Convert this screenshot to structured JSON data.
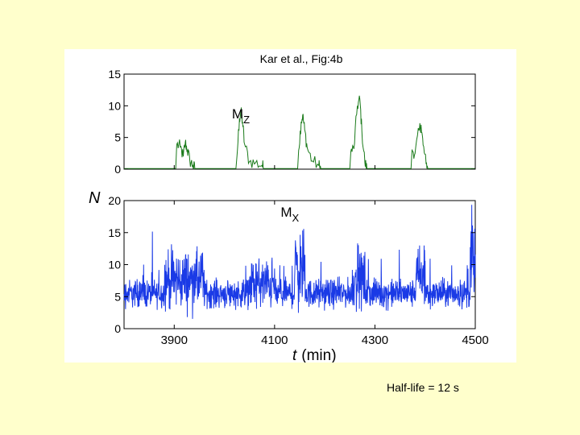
{
  "slide": {
    "background": "#ffffcc",
    "caption": "Half-life = 12 s"
  },
  "chart_data": {
    "type": "line",
    "title": "Kar et al., Fig:4b",
    "xlabel_italic": "t",
    "xlabel_unit": "(min)",
    "ylabel": "N",
    "xlim": [
      3800,
      4500
    ],
    "xticks": [
      "3900",
      "4100",
      "4300",
      "4500"
    ],
    "xtick_values": [
      3900,
      4100,
      4300,
      4500
    ],
    "panels": [
      {
        "name": "Mz",
        "label_main": "M",
        "label_sub": "Z",
        "label_at": [
          4015,
          8
        ],
        "color": "#1a7a1a",
        "ylim": [
          0,
          15
        ],
        "yticks": [
          0,
          5,
          10,
          15
        ],
        "baseline": 0.1,
        "bursts": [
          {
            "t": [
              3905,
              3912,
              3918,
              3922,
              3926,
              3931,
              3937
            ],
            "peak": [
              3.9,
              3.5,
              2.0,
              4.2,
              3.1,
              1.4,
              0.6
            ]
          },
          {
            "t": [
              4025,
              4030,
              4033,
              4036,
              4040,
              4050,
              4062,
              4075
            ],
            "peak": [
              2.0,
              8.0,
              9.0,
              7.5,
              4.0,
              1.2,
              1.0,
              0.6
            ]
          },
          {
            "t": [
              4148,
              4153,
              4156,
              4160,
              4165,
              4175,
              4188
            ],
            "peak": [
              3.0,
              7.5,
              8.5,
              6.2,
              3.4,
              1.3,
              0.6
            ]
          },
          {
            "t": [
              4252,
              4258,
              4265,
              4270,
              4274,
              4280
            ],
            "peak": [
              2.8,
              3.2,
              10.0,
              11.0,
              6.0,
              1.0
            ]
          },
          {
            "t": [
              4374,
              4380,
              4388,
              4392,
              4396,
              4402
            ],
            "peak": [
              3.1,
              2.5,
              6.1,
              7.0,
              3.8,
              0.8
            ]
          }
        ]
      },
      {
        "name": "Mx",
        "label_main": "M",
        "label_sub": "X",
        "label_at": [
          4112,
          17.5
        ],
        "color": "#1a3ae6",
        "ylim": [
          0,
          20
        ],
        "yticks": [
          0,
          5,
          10,
          15,
          20
        ],
        "mean": 5.5,
        "noise": 3.2,
        "active_windows": [
          [
            3880,
            3960,
            3.5
          ],
          [
            4050,
            4100,
            2.5
          ],
          [
            4140,
            4160,
            6.0
          ],
          [
            4255,
            4280,
            3.5
          ],
          [
            4380,
            4400,
            4.0
          ],
          [
            4490,
            4500,
            8.0
          ]
        ]
      }
    ]
  }
}
